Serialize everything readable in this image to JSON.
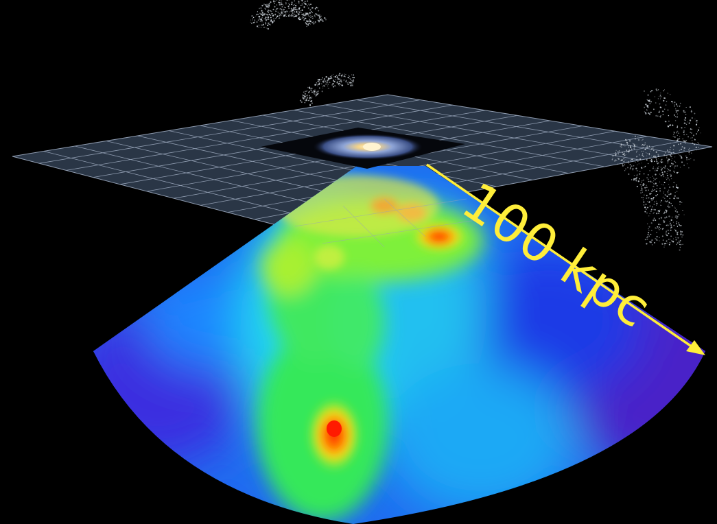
{
  "figure": {
    "scale_label": "100 kpc",
    "colors": {
      "background": "#000000",
      "grid_fill": "#2a3646",
      "grid_line": "#8f9cb0",
      "arrow": "#ffee3a",
      "density_low": "#3a1fd0",
      "density_mid": "#22e0ff",
      "density_high": "#ff1a00"
    },
    "elements": [
      "galactic-plane-grid",
      "milky-way-disk",
      "stellar-stream",
      "density-map-wedge",
      "scale-arrow"
    ]
  }
}
